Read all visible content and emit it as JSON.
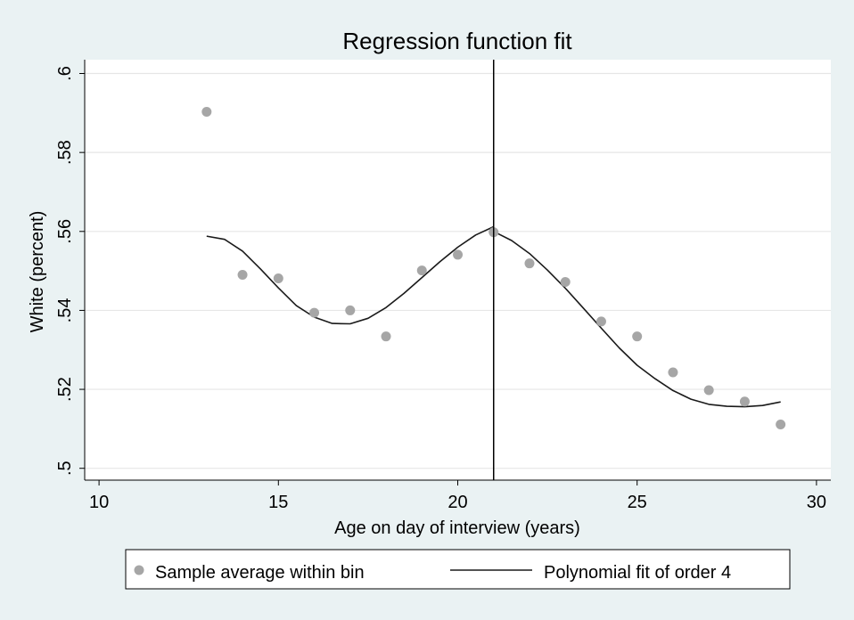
{
  "chart_data": {
    "type": "scatter",
    "title": "Regression function fit",
    "xlabel": "Age on day of interview (years)",
    "ylabel": "White (percent)",
    "xlim": [
      9.6,
      30.4
    ],
    "ylim": [
      0.497,
      0.6035
    ],
    "xticks": [
      10,
      15,
      20,
      25,
      30
    ],
    "xtick_labels": [
      "10",
      "15",
      "20",
      "25",
      "30"
    ],
    "yticks": [
      0.5,
      0.52,
      0.54,
      0.56,
      0.58,
      0.6
    ],
    "ytick_labels": [
      ".5",
      ".52",
      ".54",
      ".56",
      ".58",
      ".6"
    ],
    "grid": true,
    "cutoff_line_x": 21,
    "legend_position": "bottom",
    "legend": [
      {
        "label": "Sample average within bin",
        "marker": "dot"
      },
      {
        "label": "Polynomial fit of order 4",
        "marker": "line"
      }
    ],
    "series": [
      {
        "name": "Sample average within bin",
        "kind": "scatter",
        "x": [
          13,
          14,
          15,
          16,
          17,
          18,
          19,
          20,
          21,
          22,
          23,
          24,
          25,
          26,
          27,
          28,
          29
        ],
        "y": [
          0.5903,
          0.549,
          0.5481,
          0.5394,
          0.54,
          0.5334,
          0.5501,
          0.5541,
          0.5598,
          0.5519,
          0.5472,
          0.5372,
          0.5334,
          0.5243,
          0.5198,
          0.5169,
          0.5111
        ],
        "color": "#a6a6a6"
      },
      {
        "name": "Polynomial fit of order 4",
        "kind": "line",
        "segment": "left",
        "x": [
          13,
          13.5,
          14,
          14.5,
          15,
          15.5,
          16,
          16.5,
          17,
          17.5,
          18,
          18.5,
          19,
          19.5,
          20,
          20.5,
          21
        ],
        "y": [
          0.5588,
          0.558,
          0.555,
          0.5505,
          0.5457,
          0.5412,
          0.5383,
          0.5367,
          0.5366,
          0.538,
          0.5407,
          0.5443,
          0.5483,
          0.5523,
          0.556,
          0.5591,
          0.5612
        ],
        "color": "#1a1a1a"
      },
      {
        "name": "Polynomial fit of order 4",
        "kind": "line",
        "segment": "right",
        "x": [
          21,
          21.5,
          22,
          22.5,
          23,
          23.5,
          24,
          24.5,
          25,
          25.5,
          26,
          26.5,
          27,
          27.5,
          28,
          28.5,
          29
        ],
        "y": [
          0.56,
          0.5577,
          0.5544,
          0.5502,
          0.5456,
          0.5406,
          0.5355,
          0.5305,
          0.5261,
          0.5227,
          0.5197,
          0.5175,
          0.5162,
          0.5157,
          0.5156,
          0.5159,
          0.5168
        ],
        "color": "#1a1a1a"
      }
    ]
  }
}
